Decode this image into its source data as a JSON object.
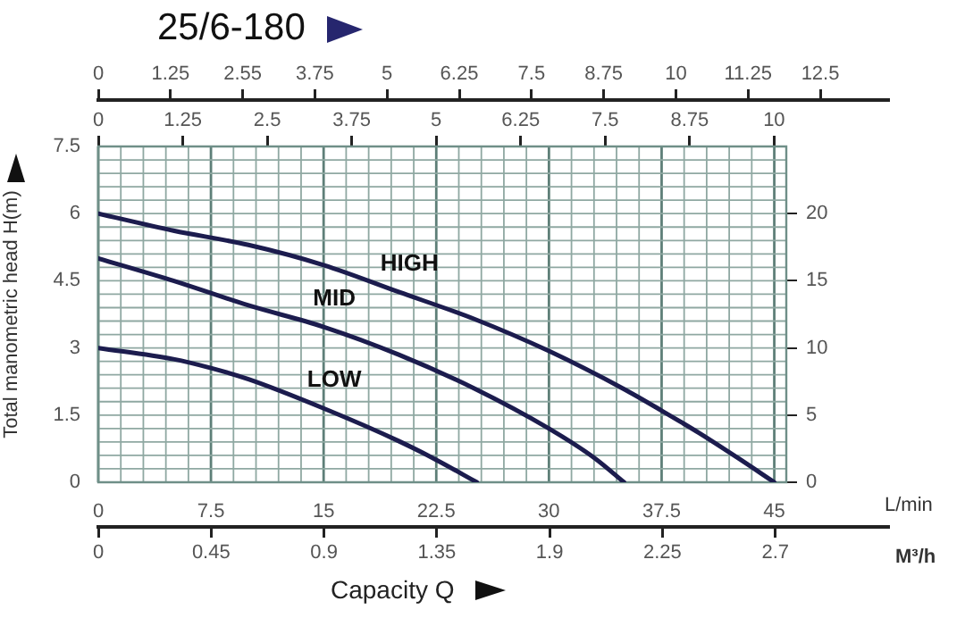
{
  "chart_data": [
    {
      "type": "other",
      "title": "25/6-180",
      "categories": [
        "0",
        "1.25",
        "2.55",
        "3.75",
        "5",
        "6.25",
        "7.5",
        "8.75",
        "10",
        "11.25",
        "12.5"
      ]
    },
    {
      "type": "line",
      "ylabel": "Total manometric head H(m)",
      "xlabel": "L/min",
      "xlim": [
        0,
        45.8
      ],
      "xticks": [
        0,
        7.5,
        15,
        22.5,
        30,
        37.5,
        45
      ],
      "x2lim": [
        0,
        10.18
      ],
      "x2ticks": [
        0,
        1.25,
        2.5,
        3.75,
        5,
        6.25,
        7.5,
        8.75,
        10
      ],
      "ylim": [
        0,
        7.5
      ],
      "yticks": [
        0,
        1.5,
        3,
        4.5,
        6,
        7.5
      ],
      "y2lim": [
        0,
        25
      ],
      "y2ticks": [
        0,
        5,
        10,
        15,
        20
      ],
      "grid": true,
      "series": [
        {
          "name": "HIGH",
          "color": "#1c1c4e",
          "x": [
            0,
            5,
            10,
            15,
            20,
            25,
            30,
            35,
            37.5,
            40,
            42.5,
            45
          ],
          "values": [
            6,
            5.62,
            5.3,
            4.85,
            4.25,
            3.65,
            2.93,
            2.08,
            1.6,
            1.1,
            0.56,
            0
          ]
        },
        {
          "name": "MID",
          "color": "#1c1c4e",
          "x": [
            0,
            5,
            10,
            15,
            20,
            25,
            30,
            33,
            35
          ],
          "values": [
            5,
            4.5,
            3.95,
            3.47,
            2.85,
            2.1,
            1.2,
            0.55,
            0
          ]
        },
        {
          "name": "LOW",
          "color": "#1c1c4e",
          "x": [
            0,
            5,
            7.5,
            10,
            15,
            20,
            22.5,
            25.2
          ],
          "values": [
            3,
            2.75,
            2.55,
            2.3,
            1.65,
            0.92,
            0.5,
            0
          ]
        }
      ]
    },
    {
      "type": "other",
      "xlabel": "M³/h",
      "categories": [
        "0",
        "0.45",
        "0.9",
        "1.35",
        "1.9",
        "2.25",
        "2.7"
      ],
      "annotations": [
        "Capacity Q"
      ]
    }
  ]
}
